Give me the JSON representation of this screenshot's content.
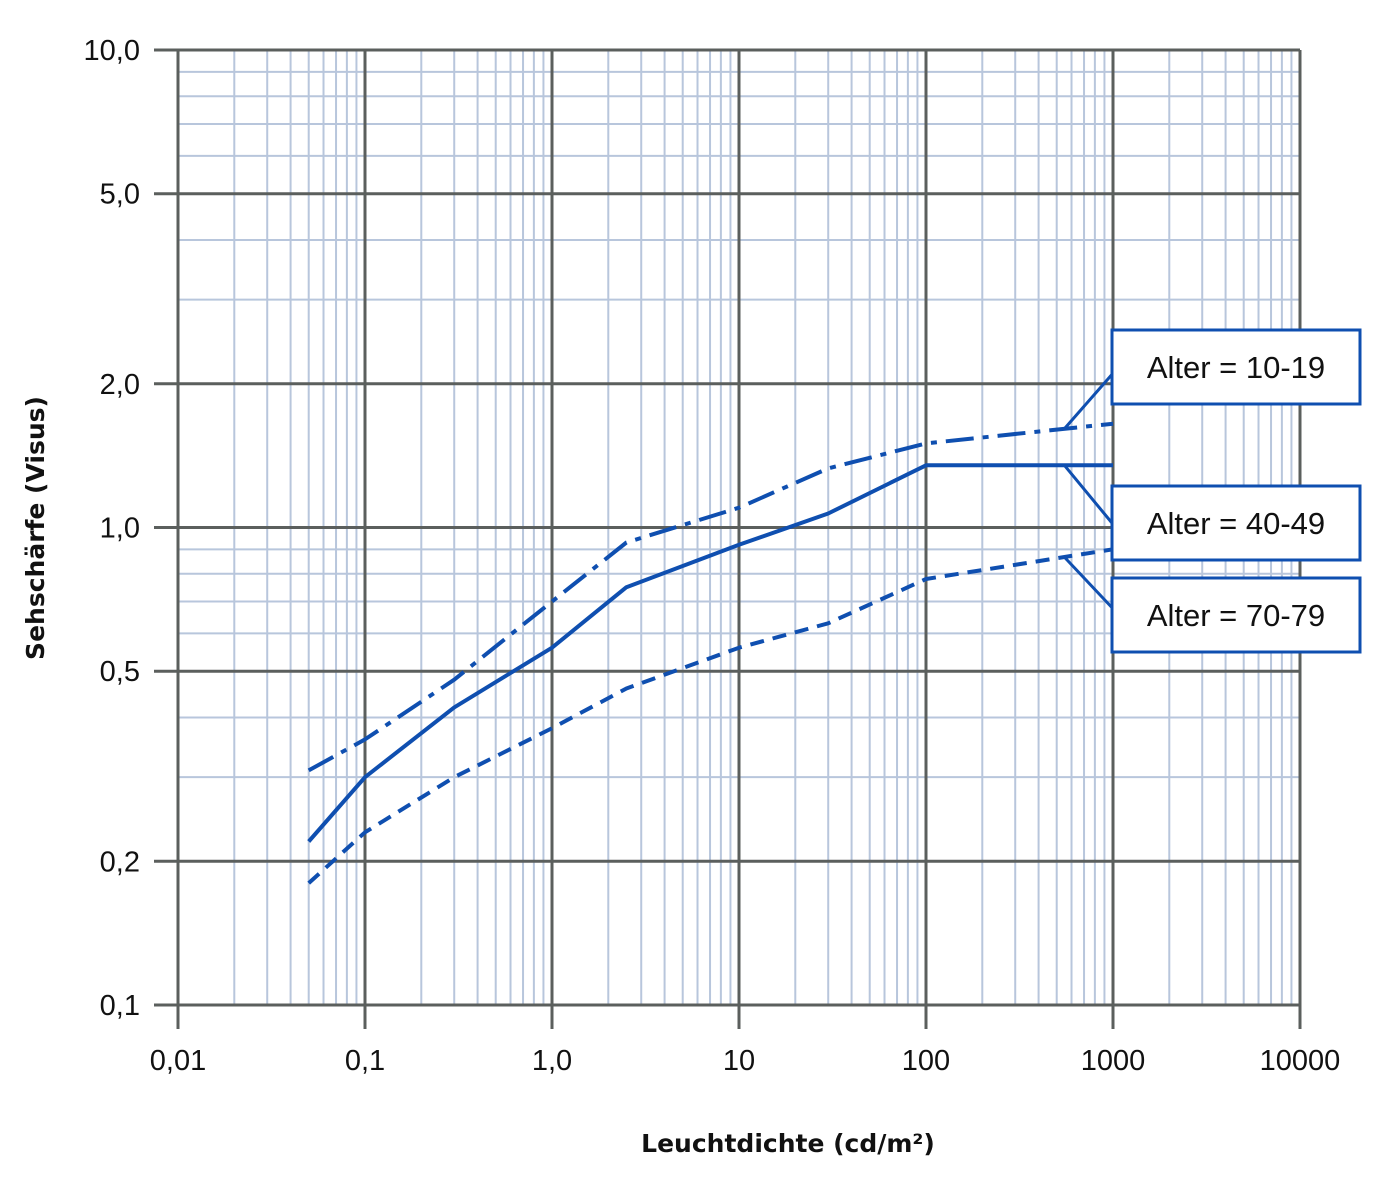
{
  "chart_data": {
    "type": "line",
    "xlabel": "Leuchtdichte (cd/m²)",
    "ylabel": "Sehschärfe (Visus)",
    "x_scale": "log",
    "y_scale": "log",
    "xlim": [
      0.01,
      10000
    ],
    "ylim": [
      0.1,
      10.0
    ],
    "grid": true,
    "x_ticks": [
      {
        "value": 0.01,
        "label": "0,01"
      },
      {
        "value": 0.1,
        "label": "0,1"
      },
      {
        "value": 1,
        "label": "1,0"
      },
      {
        "value": 10,
        "label": "10"
      },
      {
        "value": 100,
        "label": "100"
      },
      {
        "value": 1000,
        "label": "1000"
      },
      {
        "value": 10000,
        "label": "10000"
      }
    ],
    "y_ticks": [
      {
        "value": 0.1,
        "label": "0,1"
      },
      {
        "value": 0.2,
        "label": "0,2"
      },
      {
        "value": 0.5,
        "label": "0,5"
      },
      {
        "value": 1.0,
        "label": "1,0"
      },
      {
        "value": 2.0,
        "label": "2,0"
      },
      {
        "value": 5.0,
        "label": "5,0"
      },
      {
        "value": 10.0,
        "label": "10,0"
      }
    ],
    "series": [
      {
        "name": "Alter = 10-19",
        "dash": "dash-dot",
        "points": [
          [
            0.05,
            0.31
          ],
          [
            0.1,
            0.36
          ],
          [
            0.3,
            0.48
          ],
          [
            1,
            0.7
          ],
          [
            2.5,
            0.93
          ],
          [
            10,
            1.1
          ],
          [
            30,
            1.33
          ],
          [
            100,
            1.5
          ],
          [
            1000,
            1.65
          ]
        ],
        "callout_at": 550
      },
      {
        "name": "Alter = 40-49",
        "dash": "solid",
        "points": [
          [
            0.05,
            0.22
          ],
          [
            0.1,
            0.3
          ],
          [
            0.3,
            0.42
          ],
          [
            1,
            0.56
          ],
          [
            2.5,
            0.75
          ],
          [
            10,
            0.92
          ],
          [
            30,
            1.07
          ],
          [
            100,
            1.35
          ],
          [
            1000,
            1.35
          ]
        ],
        "callout_at": 550
      },
      {
        "name": "Alter = 70-79",
        "dash": "dashed",
        "points": [
          [
            0.05,
            0.18
          ],
          [
            0.1,
            0.23
          ],
          [
            0.3,
            0.3
          ],
          [
            1,
            0.38
          ],
          [
            2.5,
            0.46
          ],
          [
            10,
            0.56
          ],
          [
            30,
            0.63
          ],
          [
            100,
            0.78
          ],
          [
            1000,
            0.9
          ]
        ],
        "callout_at": 550
      }
    ],
    "colors": {
      "series": "#0f4fb0",
      "major_grid": "#5b5f5d",
      "minor_grid": "#b8c6dc",
      "legend_border": "#0f4fb0"
    }
  }
}
